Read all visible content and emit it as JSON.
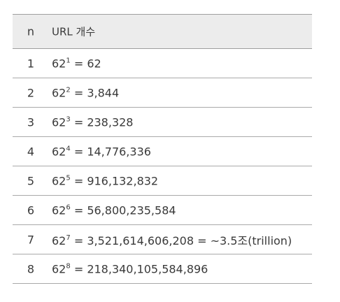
{
  "header": {
    "col_n": "n",
    "col_urls": "URL 개수"
  },
  "rows": [
    {
      "n": "1",
      "base": "62",
      "exp": "1",
      "rest": " = 62"
    },
    {
      "n": "2",
      "base": "62",
      "exp": "2",
      "rest": " = 3,844"
    },
    {
      "n": "3",
      "base": "62",
      "exp": "3",
      "rest": " = 238,328"
    },
    {
      "n": "4",
      "base": "62",
      "exp": "4",
      "rest": " = 14,776,336"
    },
    {
      "n": "5",
      "base": "62",
      "exp": "5",
      "rest": " = 916,132,832"
    },
    {
      "n": "6",
      "base": "62",
      "exp": "6",
      "rest": " = 56,800,235,584"
    },
    {
      "n": "7",
      "base": "62",
      "exp": "7",
      "rest": " = 3,521,614,606,208 = ~3.5조(trillion)"
    },
    {
      "n": "8",
      "base": "62",
      "exp": "8",
      "rest": " = 218,340,105,584,896"
    }
  ]
}
